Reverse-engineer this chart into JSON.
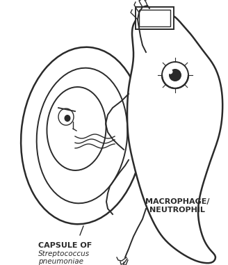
{
  "bg_color": "#ffffff",
  "line_color": "#2a2a2a",
  "label_capsule_bold": "CAPSULE OF",
  "label_capsule_italic1": "Streptococcus",
  "label_capsule_italic2": "pneumoniae",
  "label_immune_bold1": "MACROPHAGE/",
  "label_immune_bold2": "NEUTROPHIL",
  "figsize": [
    3.28,
    3.81
  ],
  "dpi": 100
}
